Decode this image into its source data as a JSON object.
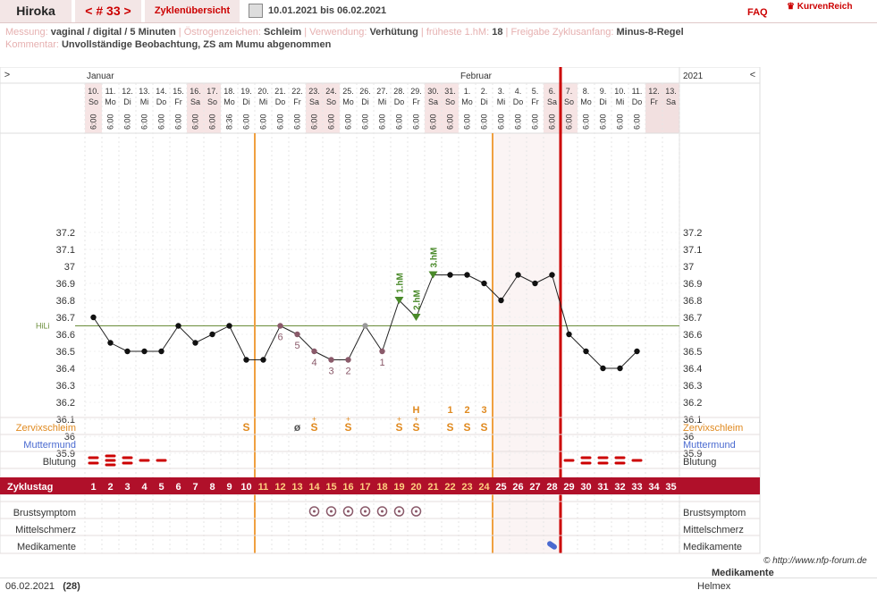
{
  "header": {
    "title": "Hiroka",
    "cycle_nav": "< # 33 >",
    "overview_tab": "Zyklenübersicht",
    "date_range": "10.01.2021 bis 06.02.2021",
    "faq": "FAQ",
    "brand": "KurvenReich",
    "print_icon": "printer-icon"
  },
  "meta": {
    "measurement_label": "Messung:",
    "measurement": "vaginal / digital / 5 Minuten",
    "estrogen_label": "Östrogenzeichen:",
    "estrogen": "Schleim",
    "usage_label": "Verwendung:",
    "usage": "Verhütung",
    "earliest_label": "früheste 1.hM:",
    "earliest": "18",
    "release_label": "Freigabe Zyklusanfang:",
    "release": "Minus-8-Regel",
    "comment_label": "Kommentar:",
    "comment": "Unvollständige Beobachtung, ZS am Mumu abgenommen"
  },
  "chart_data": {
    "type": "line",
    "months": [
      "Januar",
      "Februar"
    ],
    "year": "2021",
    "nav_left": ">",
    "nav_right": "<",
    "dates": [
      "10.",
      "11.",
      "12.",
      "13.",
      "14.",
      "15.",
      "16.",
      "17.",
      "18.",
      "19.",
      "20.",
      "21.",
      "22.",
      "23.",
      "24.",
      "25.",
      "26.",
      "27.",
      "28.",
      "29.",
      "30.",
      "31.",
      "1.",
      "2.",
      "3.",
      "4.",
      "5.",
      "6.",
      "7.",
      "8.",
      "9.",
      "10.",
      "11.",
      "12.",
      "13."
    ],
    "weekdays": [
      "So",
      "Mo",
      "Di",
      "Mi",
      "Do",
      "Fr",
      "Sa",
      "So",
      "Mo",
      "Di",
      "Mi",
      "Do",
      "Fr",
      "Sa",
      "So",
      "Mo",
      "Di",
      "Mi",
      "Do",
      "Fr",
      "Sa",
      "So",
      "Mo",
      "Di",
      "Mi",
      "Do",
      "Fr",
      "Sa",
      "So",
      "Mo",
      "Di",
      "Mi",
      "Do",
      "Fr",
      "Sa"
    ],
    "times": [
      "6:00",
      "6:00",
      "6:00",
      "6:00",
      "6:00",
      "6:00",
      "6:00",
      "6:00",
      "8:36",
      "6:00",
      "6:00",
      "6:00",
      "6:00",
      "6:00",
      "6:00",
      "6:00",
      "6:00",
      "6:00",
      "6:00",
      "6:00",
      "6:00",
      "6:00",
      "6:00",
      "6:00",
      "6:00",
      "6:00",
      "6:00",
      "6:00",
      "6:00",
      "6:00",
      "6:00",
      "6:00",
      "6:00",
      "",
      ""
    ],
    "temps": [
      36.7,
      36.55,
      36.5,
      36.5,
      36.5,
      36.65,
      36.55,
      36.6,
      36.65,
      36.45,
      36.45,
      36.65,
      36.6,
      36.5,
      36.45,
      36.45,
      36.65,
      36.5,
      36.8,
      36.7,
      36.95,
      36.95,
      36.95,
      36.9,
      36.8,
      36.95,
      36.9,
      36.95,
      36.6,
      36.5,
      36.4,
      36.4,
      36.5,
      null,
      null
    ],
    "excluded_days": [
      17
    ],
    "y_ticks": [
      "37.2",
      "37.1",
      "37",
      "36.9",
      "36.8",
      "36.7",
      "36.6",
      "36.5",
      "36.4",
      "36.3",
      "36.2",
      "36.1",
      "36",
      "35.9"
    ],
    "ylim": [
      35.9,
      37.2
    ],
    "coverline_label": "HiLi",
    "coverline": 36.65,
    "low_labels": [
      {
        "day": 12,
        "text": "6"
      },
      {
        "day": 13,
        "text": "5"
      },
      {
        "day": 14,
        "text": "4"
      },
      {
        "day": 15,
        "text": "3"
      },
      {
        "day": 16,
        "text": "2"
      },
      {
        "day": 18,
        "text": "1"
      }
    ],
    "high_labels": [
      {
        "day": 19,
        "text": "1.hM"
      },
      {
        "day": 20,
        "text": "2.hM"
      },
      {
        "day": 21,
        "text": "3.hM"
      }
    ],
    "cervix_top": [
      {
        "day": 20,
        "text": "H"
      },
      {
        "day": 22,
        "text": "1"
      },
      {
        "day": 23,
        "text": "2"
      },
      {
        "day": 24,
        "text": "3"
      }
    ],
    "mucus": [
      {
        "day": 10,
        "text": "S"
      },
      {
        "day": 13,
        "text": "ø"
      },
      {
        "day": 14,
        "text": "S"
      },
      {
        "day": 16,
        "text": "S"
      },
      {
        "day": 19,
        "text": "S"
      },
      {
        "day": 20,
        "text": "S"
      },
      {
        "day": 22,
        "text": "S"
      },
      {
        "day": 23,
        "text": "S"
      },
      {
        "day": 24,
        "text": "S"
      }
    ],
    "mucus_plus_days": [
      14,
      16,
      19,
      20
    ],
    "bleeding": [
      {
        "day": 1,
        "level": 2
      },
      {
        "day": 2,
        "level": 3
      },
      {
        "day": 3,
        "level": 2
      },
      {
        "day": 4,
        "level": 1
      },
      {
        "day": 5,
        "level": 1
      },
      {
        "day": 29,
        "level": 1
      },
      {
        "day": 30,
        "level": 2
      },
      {
        "day": 31,
        "level": 2
      },
      {
        "day": 32,
        "level": 2
      },
      {
        "day": 33,
        "level": 1
      }
    ],
    "breast_days": [
      14,
      15,
      16,
      17,
      18,
      19,
      20
    ],
    "medication_days": [
      28
    ],
    "orange_lines": [
      10,
      24
    ],
    "red_line": 28,
    "cycle_days": [
      "1",
      "2",
      "3",
      "4",
      "5",
      "6",
      "7",
      "8",
      "9",
      "10",
      "11",
      "12",
      "13",
      "14",
      "15",
      "16",
      "17",
      "18",
      "19",
      "20",
      "21",
      "22",
      "23",
      "24",
      "25",
      "26",
      "27",
      "28",
      "29",
      "30",
      "31",
      "32",
      "33",
      "34",
      "35"
    ],
    "rows_left": {
      "mucus": "Zervixschleim",
      "cervix": "Muttermund",
      "bleeding": "Blutung",
      "cycle": "Zyklustag",
      "breast": "Brustsymptom",
      "pain": "Mittelschmerz",
      "meds": "Medikamente"
    },
    "rows_right": {
      "mucus": "Zervixschleim",
      "cervix": "Muttermund",
      "bleeding": "Blutung",
      "breast": "Brustsymptom",
      "pain": "Mittelschmerz",
      "meds": "Medikamente"
    }
  },
  "footer": {
    "copyright": "© http://www.nfp-forum.de",
    "med_heading": "Medikamente",
    "med_value": "Helmex",
    "date": "06.02.2021",
    "count": "(28)"
  }
}
